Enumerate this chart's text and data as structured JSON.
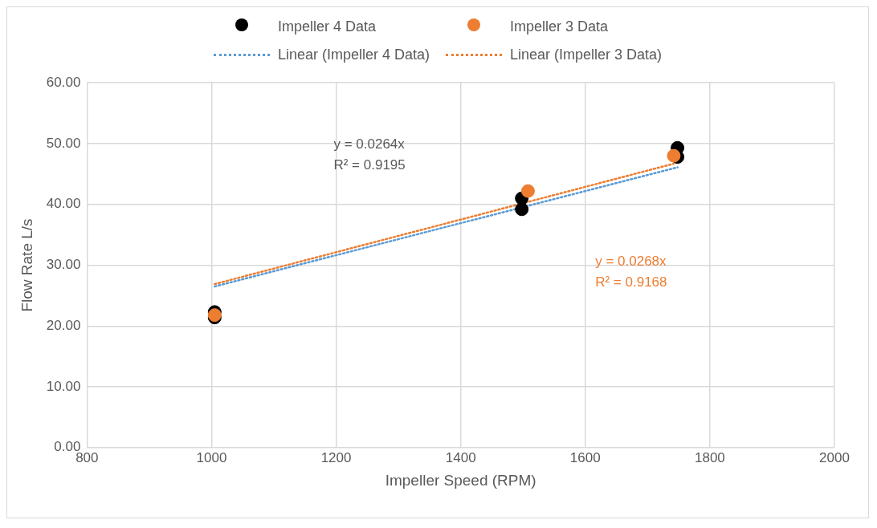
{
  "chart_data": {
    "type": "scatter",
    "xlabel": "Impeller Speed (RPM)",
    "ylabel": "Flow Rate L/s",
    "legend": "top",
    "grid": true,
    "marker": "circle",
    "xlim": [
      800,
      2000
    ],
    "xticks": [
      800,
      1000,
      1200,
      1400,
      1600,
      1800,
      2000
    ],
    "ylim": [
      0,
      60
    ],
    "yticks": [
      {
        "value": 0,
        "label": "0.00"
      },
      {
        "value": 10,
        "label": "10.00"
      },
      {
        "value": 20,
        "label": "20.00"
      },
      {
        "value": 30,
        "label": "30.00"
      },
      {
        "value": 40,
        "label": "40.00"
      },
      {
        "value": 50,
        "label": "50.00"
      },
      {
        "value": 60,
        "label": "60.00"
      }
    ],
    "series": [
      {
        "name": "Impeller 4 Data",
        "type": "scatter",
        "color": "#000000",
        "x": [
          1005,
          1005,
          1498,
          1498,
          1748,
          1748
        ],
        "values": [
          22.3,
          21.4,
          41.0,
          39.2,
          49.3,
          47.8
        ]
      },
      {
        "name": "Impeller 3 Data",
        "type": "scatter",
        "color": "#ed7d31",
        "x": [
          1005,
          1508,
          1742
        ],
        "values": [
          21.8,
          42.2,
          48.0
        ]
      },
      {
        "name": "Linear (Impeller 4 Data)",
        "type": "line",
        "line_style": "dotted",
        "marker": "none",
        "color": "#5b9bd5",
        "x": [
          1005,
          1748
        ],
        "values": [
          26.5,
          46.1
        ]
      },
      {
        "name": "Linear (Impeller 3 Data)",
        "type": "line",
        "line_style": "dotted",
        "marker": "none",
        "color": "#ed7d31",
        "x": [
          1005,
          1742
        ],
        "values": [
          26.9,
          46.7
        ]
      }
    ],
    "annotations": [
      "y = 0.0264x",
      "R² = 0.9195",
      "y = 0.0268x",
      "R² = 0.9168"
    ]
  }
}
